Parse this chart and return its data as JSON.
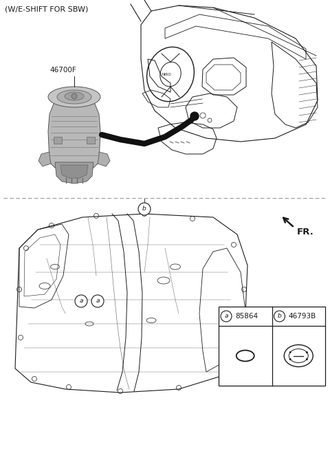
{
  "title_text": "(W/E-SHIFT FOR SBW)",
  "part_label_top": "46700F",
  "part_a_label": "85864",
  "part_b_label": "46793B",
  "fr_label": "FR.",
  "bg_color": "#ffffff",
  "line_color": "#1a1a1a",
  "gray1": "#b0b0b0",
  "gray2": "#888888",
  "gray3": "#d0d0d0",
  "dashed_line_color": "#999999",
  "fig_width": 4.8,
  "fig_height": 6.56,
  "dpi": 100
}
